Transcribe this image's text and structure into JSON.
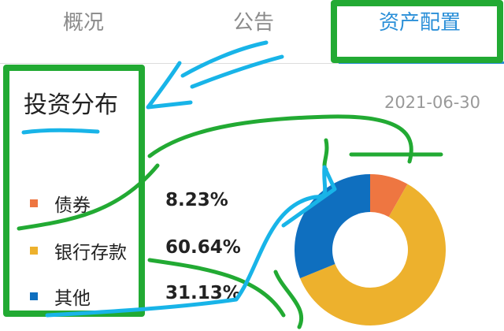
{
  "tabs": [
    {
      "label": "概况"
    },
    {
      "label": "公告"
    },
    {
      "label": "资产配置",
      "active": true
    }
  ],
  "section": {
    "title": "投资分布",
    "date": "2021-06-30"
  },
  "accent": "#2a8fd8",
  "chart_data": {
    "type": "pie",
    "variant": "donut",
    "categories": [
      "债券",
      "银行存款",
      "其他"
    ],
    "values": [
      8.23,
      60.64,
      31.13
    ],
    "value_labels": [
      "8.23%",
      "60.64%",
      "31.13%"
    ],
    "colors": [
      "#ee7641",
      "#edb12d",
      "#0f6fbf"
    ],
    "legend": "left"
  },
  "annotations": {
    "colors": [
      "#22aa33",
      "#18b4e8"
    ]
  }
}
